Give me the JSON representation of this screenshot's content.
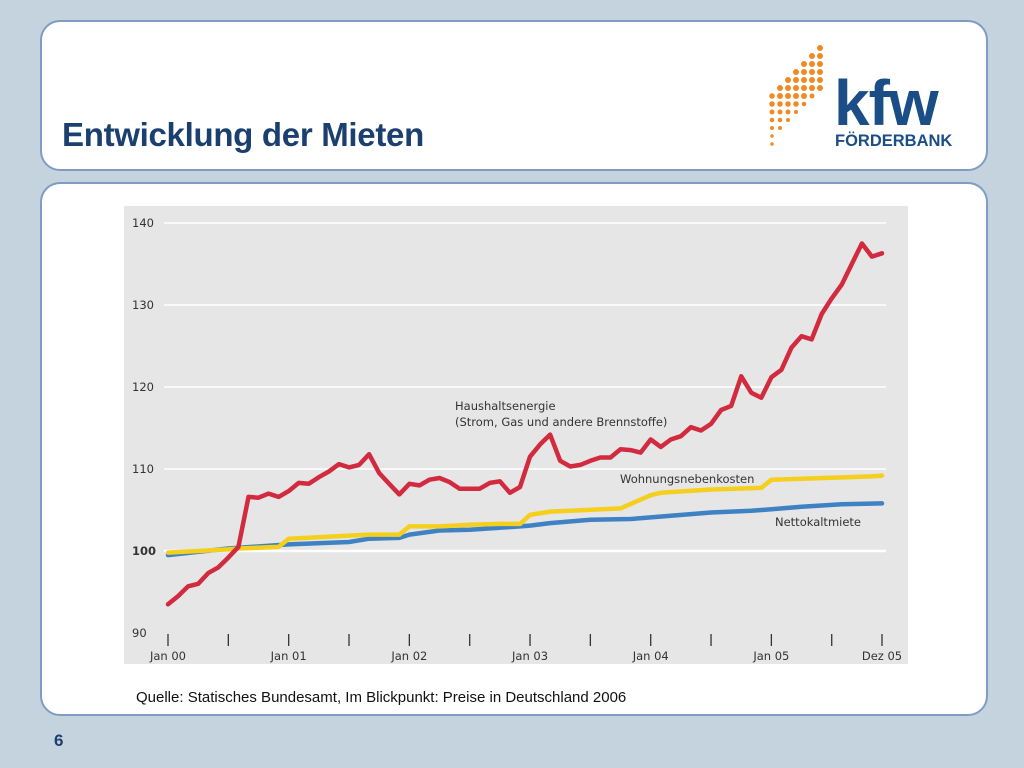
{
  "slide": {
    "title": "Entwicklung der Mieten",
    "source": "Quelle: Statisches Bundesamt, Im Blickpunkt: Preise in Deutschland 2006",
    "page_number": "6"
  },
  "logo": {
    "wordmark": "kfw",
    "subtitle": "FÖRDERBANK"
  },
  "colors": {
    "background": "#c5d3de",
    "panel_border": "#7f9cc4",
    "title": "#1b3f6e",
    "chart_bg": "#e6e6e6",
    "logo_orange": "#f08a24",
    "logo_blue": "#1b4d86"
  },
  "chart_data": {
    "type": "line",
    "title": "",
    "xlabel": "",
    "ylabel": "",
    "ylim": [
      90,
      140
    ],
    "xlim": [
      0,
      71
    ],
    "grid": true,
    "y_ticks": [
      "140",
      "130",
      "120",
      "110",
      "100",
      "90"
    ],
    "y_tick_values": [
      140,
      130,
      120,
      110,
      100,
      90
    ],
    "x_tick_labels": [
      "Jan 00",
      "Jan 01",
      "Jan 02",
      "Jan 03",
      "Jan 04",
      "Jan 05",
      "Dez 05"
    ],
    "x_tick_label_positions": [
      0,
      12,
      24,
      36,
      48,
      60,
      71
    ],
    "x_minor_ticks": [
      0,
      6,
      12,
      18,
      24,
      30,
      36,
      42,
      48,
      54,
      60,
      66,
      71
    ],
    "series": [
      {
        "name": "Haushaltsenergie (Strom, Gas und andere Brennstoffe)",
        "label_lines": [
          "Haushaltsenergie",
          "(Strom, Gas und andere Brennstoffe)"
        ],
        "color": "#d22a3e",
        "x": [
          0,
          1,
          2,
          3,
          4,
          5,
          6,
          7,
          8,
          9,
          10,
          11,
          12,
          13,
          14,
          15,
          16,
          17,
          18,
          19,
          20,
          21,
          22,
          23,
          24,
          25,
          26,
          27,
          28,
          29,
          30,
          31,
          32,
          33,
          34,
          35,
          36,
          37,
          38,
          39,
          40,
          41,
          42,
          43,
          44,
          45,
          46,
          47,
          48,
          49,
          50,
          51,
          52,
          53,
          54,
          55,
          56,
          57,
          58,
          59,
          60,
          61,
          62,
          63,
          64,
          65,
          66,
          67,
          68,
          69,
          70,
          71
        ],
        "values": [
          93.5,
          94.5,
          95.7,
          96.0,
          97.3,
          98.0,
          99.2,
          100.5,
          106.6,
          106.5,
          107.0,
          106.6,
          107.3,
          108.3,
          108.2,
          109.0,
          109.7,
          110.6,
          110.2,
          110.5,
          111.8,
          109.5,
          108.2,
          106.9,
          108.2,
          108.0,
          108.7,
          108.9,
          108.4,
          107.6,
          107.6,
          107.6,
          108.3,
          108.5,
          107.1,
          107.8,
          111.5,
          113.0,
          114.2,
          111.0,
          110.3,
          110.5,
          111.0,
          111.4,
          111.4,
          112.4,
          112.3,
          112.0,
          113.6,
          112.7,
          113.6,
          114.0,
          115.1,
          114.7,
          115.5,
          117.2,
          117.7,
          121.3,
          119.3,
          118.7,
          121.2,
          122.1,
          124.8,
          126.2,
          125.8,
          128.9,
          130.8,
          132.5,
          135.0,
          137.5,
          135.9,
          136.3
        ]
      },
      {
        "name": "Wohnungsnebenkosten",
        "color": "#f5cf1e",
        "x": [
          0,
          6,
          7,
          11,
          12,
          20,
          23,
          24,
          27,
          30,
          33,
          35,
          36,
          38,
          40,
          45,
          48,
          49,
          54,
          59,
          60,
          63,
          70,
          71
        ],
        "values": [
          99.8,
          100.2,
          100.3,
          100.5,
          101.5,
          102.0,
          102.0,
          103.0,
          103.0,
          103.2,
          103.3,
          103.3,
          104.4,
          104.8,
          104.9,
          105.2,
          106.8,
          107.1,
          107.5,
          107.7,
          108.7,
          108.8,
          109.1,
          109.2
        ]
      },
      {
        "name": "Nettokaltmiete",
        "color": "#3f82c3",
        "x": [
          0,
          6,
          12,
          18,
          20,
          23,
          24,
          27,
          30,
          35,
          36,
          38,
          42,
          46,
          48,
          54,
          58,
          60,
          63,
          67,
          71
        ],
        "values": [
          99.5,
          100.3,
          100.8,
          101.1,
          101.5,
          101.6,
          102.0,
          102.5,
          102.6,
          103.0,
          103.1,
          103.4,
          103.8,
          103.9,
          104.1,
          104.7,
          104.9,
          105.1,
          105.4,
          105.7,
          105.8
        ]
      }
    ]
  }
}
